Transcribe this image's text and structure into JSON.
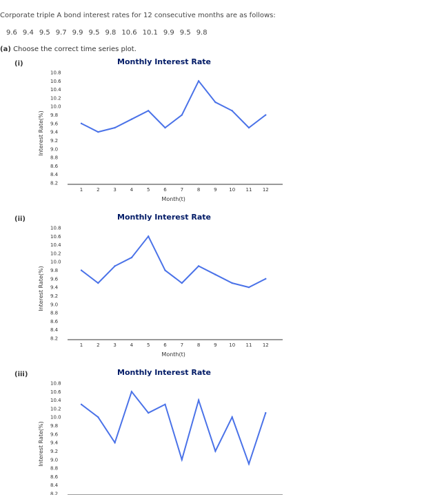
{
  "intro_text": "Corporate triple A bond interest rates for 12 consecutive months are as follows:",
  "rates": [
    "9.6",
    "9.4",
    "9.5",
    "9.7",
    "9.9",
    "9.5",
    "9.8",
    "10.6",
    "10.1",
    "9.9",
    "9.5",
    "9.8"
  ],
  "question": {
    "part": "(a)",
    "text": "Choose the correct time series plot."
  },
  "options": [
    {
      "label": "(i)"
    },
    {
      "label": "(ii)"
    },
    {
      "label": "(iii)"
    }
  ],
  "chart_data": [
    {
      "type": "line",
      "title": "Monthly Interest Rate",
      "xlabel": "Month(t)",
      "ylabel": "Interest Rate(%)",
      "x": [
        1,
        2,
        3,
        4,
        5,
        6,
        7,
        8,
        9,
        10,
        11,
        12
      ],
      "values": [
        9.6,
        9.4,
        9.5,
        9.7,
        9.9,
        9.5,
        9.8,
        10.6,
        10.1,
        9.9,
        9.5,
        9.8
      ],
      "ylim": [
        8.2,
        10.8
      ],
      "yticks": [
        "10.8",
        "10.6",
        "10.4",
        "10.2",
        "10.0",
        "9.8",
        "9.6",
        "9.4",
        "9.2",
        "9.0",
        "8.8",
        "8.6",
        "8.4",
        "8.2"
      ],
      "xticks": [
        "1",
        "2",
        "3",
        "4",
        "5",
        "6",
        "7",
        "8",
        "9",
        "10",
        "11",
        "12"
      ],
      "color": "#4a72e8"
    },
    {
      "type": "line",
      "title": "Monthly Interest Rate",
      "xlabel": "Month(t)",
      "ylabel": "Interest Rate(%)",
      "x": [
        1,
        2,
        3,
        4,
        5,
        6,
        7,
        8,
        9,
        10,
        11,
        12
      ],
      "values": [
        9.8,
        9.5,
        9.9,
        10.1,
        10.6,
        9.8,
        9.5,
        9.9,
        9.7,
        9.5,
        9.4,
        9.6
      ],
      "ylim": [
        8.2,
        10.8
      ],
      "yticks": [
        "10.8",
        "10.6",
        "10.4",
        "10.2",
        "10.0",
        "9.8",
        "9.6",
        "9.4",
        "9.2",
        "9.0",
        "8.8",
        "8.6",
        "8.4",
        "8.2"
      ],
      "xticks": [
        "1",
        "2",
        "3",
        "4",
        "5",
        "6",
        "7",
        "8",
        "9",
        "10",
        "11",
        "12"
      ],
      "color": "#4a72e8"
    },
    {
      "type": "line",
      "title": "Monthly Interest Rate",
      "xlabel": "",
      "ylabel": "Interest Rate(%)",
      "x": [
        1,
        2,
        3,
        4,
        5,
        6,
        7,
        8,
        9,
        10,
        11,
        12
      ],
      "values": [
        10.3,
        10.0,
        9.4,
        10.6,
        10.1,
        10.3,
        9.0,
        10.4,
        9.2,
        10.0,
        8.9,
        10.1
      ],
      "ylim": [
        8.2,
        10.8
      ],
      "yticks": [
        "10.8",
        "10.6",
        "10.4",
        "10.2",
        "10.0",
        "9.8",
        "9.6",
        "9.4",
        "9.2",
        "9.0",
        "8.8",
        "8.6",
        "8.4",
        "8.2"
      ],
      "xticks": [],
      "color": "#4a72e8"
    }
  ]
}
